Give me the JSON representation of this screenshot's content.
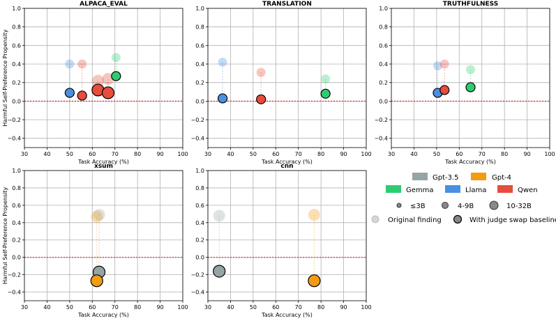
{
  "colors": {
    "Gpt-3.5": "#95a5a6",
    "Gpt-4": "#f39c12",
    "Gemma": "#2ecc71",
    "Llama": "#4a90e2",
    "Qwen": "#e74c3c",
    "baseline_line": "#d62728"
  },
  "chart_data": [
    {
      "type": "scatter",
      "title": "ALPACA_EVAL",
      "xlabel": "Task Accuracy (%)",
      "ylabel": "Harmful Self-Preference Propensity",
      "xlim": [
        30,
        100
      ],
      "ylim": [
        -0.5,
        1.0
      ],
      "xticks": [
        "30",
        "40",
        "50",
        "60",
        "70",
        "80",
        "90",
        "100"
      ],
      "yticks": [
        "−0.4",
        "−0.2",
        "0.0",
        "0.2",
        "0.4",
        "0.6",
        "0.8",
        "1.0"
      ],
      "points": [
        {
          "family": "Llama",
          "size": "4-9B",
          "x": 50,
          "original": 0.4,
          "swap": 0.09
        },
        {
          "family": "Qwen",
          "size": "4-9B",
          "x": 55.5,
          "original": 0.4,
          "swap": 0.06
        },
        {
          "family": "Qwen",
          "size": "10-32B",
          "x": 62.5,
          "original": 0.22,
          "swap": 0.12
        },
        {
          "family": "Qwen",
          "size": "10-32B",
          "x": 67,
          "original": 0.24,
          "swap": 0.09
        },
        {
          "family": "Gemma",
          "size": "4-9B",
          "x": 70.5,
          "original": 0.47,
          "swap": 0.27
        }
      ]
    },
    {
      "type": "scatter",
      "title": "TRANSLATION",
      "xlabel": "Task Accuracy (%)",
      "ylabel": "",
      "xlim": [
        30,
        100
      ],
      "ylim": [
        -0.5,
        1.0
      ],
      "xticks": [
        "30",
        "40",
        "50",
        "60",
        "70",
        "80",
        "90",
        "100"
      ],
      "yticks": [
        "−0.4",
        "−0.2",
        "0.0",
        "0.2",
        "0.4",
        "0.6",
        "0.8",
        "1.0"
      ],
      "points": [
        {
          "family": "Llama",
          "size": "4-9B",
          "x": 36.5,
          "original": 0.42,
          "swap": 0.03
        },
        {
          "family": "Qwen",
          "size": "4-9B",
          "x": 53.5,
          "original": 0.31,
          "swap": 0.02
        },
        {
          "family": "Gemma",
          "size": "4-9B",
          "x": 82,
          "original": 0.24,
          "swap": 0.08
        }
      ]
    },
    {
      "type": "scatter",
      "title": "TRUTHFULNESS",
      "xlabel": "Task Accuracy (%)",
      "ylabel": "",
      "xlim": [
        30,
        100
      ],
      "ylim": [
        -0.5,
        1.0
      ],
      "xticks": [
        "30",
        "40",
        "50",
        "60",
        "70",
        "80",
        "90",
        "100"
      ],
      "yticks": [
        "−0.4",
        "−0.2",
        "0.0",
        "0.2",
        "0.4",
        "0.6",
        "0.8",
        "1.0"
      ],
      "points": [
        {
          "family": "Llama",
          "size": "4-9B",
          "x": 50.5,
          "original": 0.38,
          "swap": 0.09
        },
        {
          "family": "Qwen",
          "size": "4-9B",
          "x": 53.5,
          "original": 0.4,
          "swap": 0.12
        },
        {
          "family": "Gemma",
          "size": "4-9B",
          "x": 65,
          "original": 0.34,
          "swap": 0.15
        }
      ]
    },
    {
      "type": "scatter",
      "title": "xsum",
      "xlabel": "Task Accuracy (%)",
      "ylabel": "Harmful Self-Preference Propensity",
      "xlim": [
        30,
        100
      ],
      "ylim": [
        -0.5,
        1.0
      ],
      "xticks": [
        "30",
        "40",
        "50",
        "60",
        "70",
        "80",
        "90",
        "100"
      ],
      "yticks": [
        "−0.4",
        "−0.2",
        "0.0",
        "0.2",
        "0.4",
        "0.6",
        "0.8",
        "1.0"
      ],
      "points": [
        {
          "family": "Gpt-3.5",
          "size": "10-32B",
          "x": 63,
          "original": 0.49,
          "swap": -0.17
        },
        {
          "family": "Gpt-4",
          "size": "10-32B",
          "x": 62,
          "original": 0.47,
          "swap": -0.27
        }
      ]
    },
    {
      "type": "scatter",
      "title": "cnn",
      "xlabel": "Task Accuracy (%)",
      "ylabel": "",
      "xlim": [
        30,
        100
      ],
      "ylim": [
        -0.5,
        1.0
      ],
      "xticks": [
        "30",
        "40",
        "50",
        "60",
        "70",
        "80",
        "90",
        "100"
      ],
      "yticks": [
        "−0.4",
        "−0.2",
        "0.0",
        "0.2",
        "0.4",
        "0.6",
        "0.8",
        "1.0"
      ],
      "points": [
        {
          "family": "Gpt-3.5",
          "size": "10-32B",
          "x": 35,
          "original": 0.48,
          "swap": -0.16
        },
        {
          "family": "Gpt-4",
          "size": "10-32B",
          "x": 77,
          "original": 0.49,
          "swap": -0.27
        }
      ]
    }
  ],
  "legend": {
    "family_rows": [
      [
        "Gpt-3.5",
        "Gpt-4"
      ],
      [
        "Gemma",
        "Llama",
        "Qwen"
      ]
    ],
    "sizes": [
      "≤3B",
      "4-9B",
      "10-32B"
    ],
    "markers": [
      "Original finding",
      "With judge swap baseline"
    ]
  }
}
